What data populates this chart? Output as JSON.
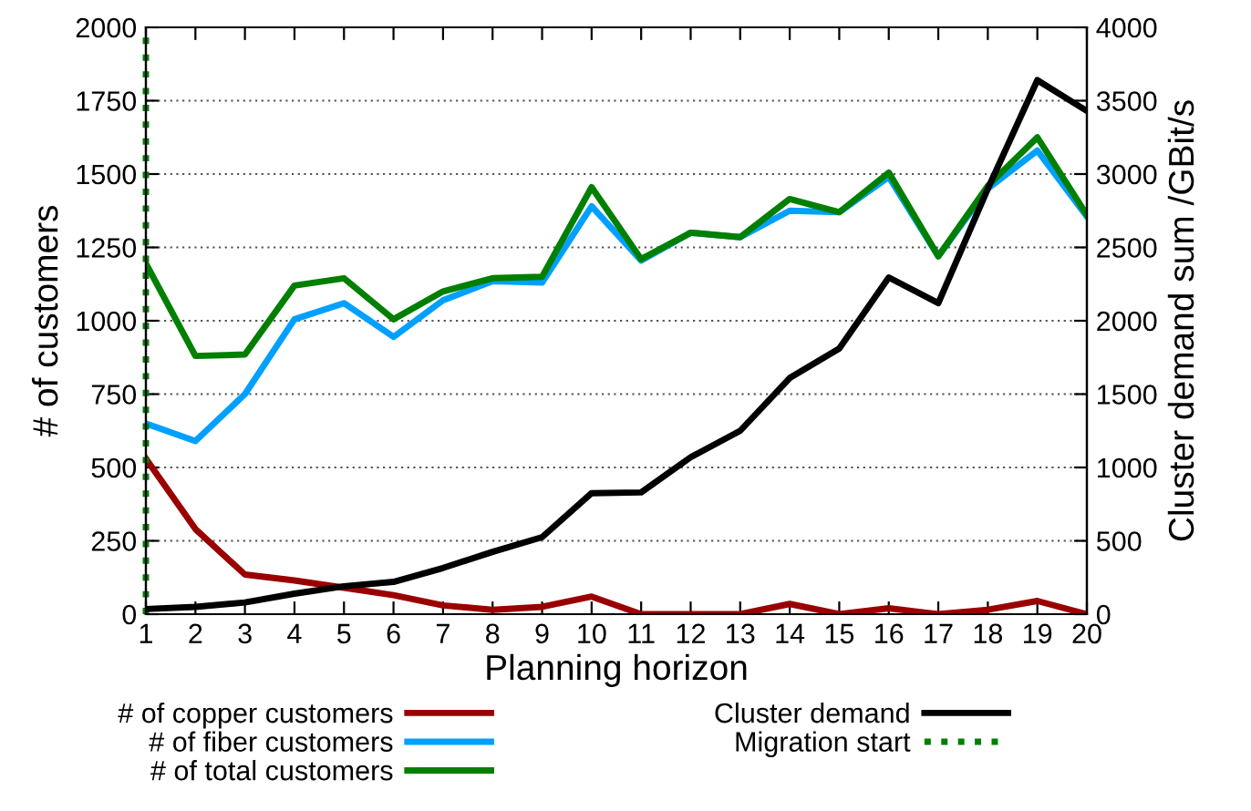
{
  "chart_data": {
    "type": "line",
    "xlabel": "Planning horizon",
    "ylabel": "# of customers",
    "y2label": "Cluster demand sum /GBit/s",
    "x": [
      1,
      2,
      3,
      4,
      5,
      6,
      7,
      8,
      9,
      10,
      11,
      12,
      13,
      14,
      15,
      16,
      17,
      18,
      19,
      20
    ],
    "series": [
      {
        "name": "# of copper customers",
        "color": "#9b0000",
        "values": [
          530,
          290,
          135,
          115,
          90,
          65,
          30,
          15,
          25,
          60,
          0,
          0,
          0,
          35,
          0,
          20,
          0,
          15,
          45,
          0
        ]
      },
      {
        "name": "# of fiber customers",
        "color": "#00a0ff",
        "values": [
          650,
          590,
          750,
          1005,
          1060,
          945,
          1070,
          1135,
          1130,
          1390,
          1205,
          1300,
          1285,
          1375,
          1370,
          1490,
          1220,
          1450,
          1580,
          1355
        ]
      },
      {
        "name": "# of total customers",
        "color": "#007f00",
        "values": [
          1195,
          880,
          885,
          1120,
          1145,
          1005,
          1100,
          1145,
          1150,
          1455,
          1210,
          1300,
          1285,
          1415,
          1370,
          1505,
          1220,
          1460,
          1625,
          1360
        ]
      },
      {
        "name": "Cluster demand",
        "color": "#000000",
        "axis": "y2",
        "values": [
          35,
          50,
          80,
          140,
          190,
          220,
          315,
          425,
          525,
          825,
          830,
          1070,
          1250,
          1610,
          1810,
          2295,
          2120,
          2900,
          3640,
          3430
        ]
      }
    ],
    "ref_lines": [
      {
        "axis": "x",
        "value": 1,
        "label": "Migration start",
        "color": "#007f00",
        "line_style": "dotted"
      }
    ],
    "xlim": [
      1,
      20
    ],
    "xticks": [
      1,
      2,
      3,
      4,
      5,
      6,
      7,
      8,
      9,
      10,
      11,
      12,
      13,
      14,
      15,
      16,
      17,
      18,
      19,
      20
    ],
    "ylim": [
      0,
      2000
    ],
    "yticks": [
      0,
      250,
      500,
      750,
      1000,
      1250,
      1500,
      1750,
      2000
    ],
    "y2lim": [
      0,
      4000
    ],
    "y2ticks": [
      0,
      500,
      1000,
      1500,
      2000,
      2500,
      3000,
      3500,
      4000
    ],
    "grid": "y",
    "legend": "bottom",
    "line_style": "solid",
    "marker": "none"
  }
}
